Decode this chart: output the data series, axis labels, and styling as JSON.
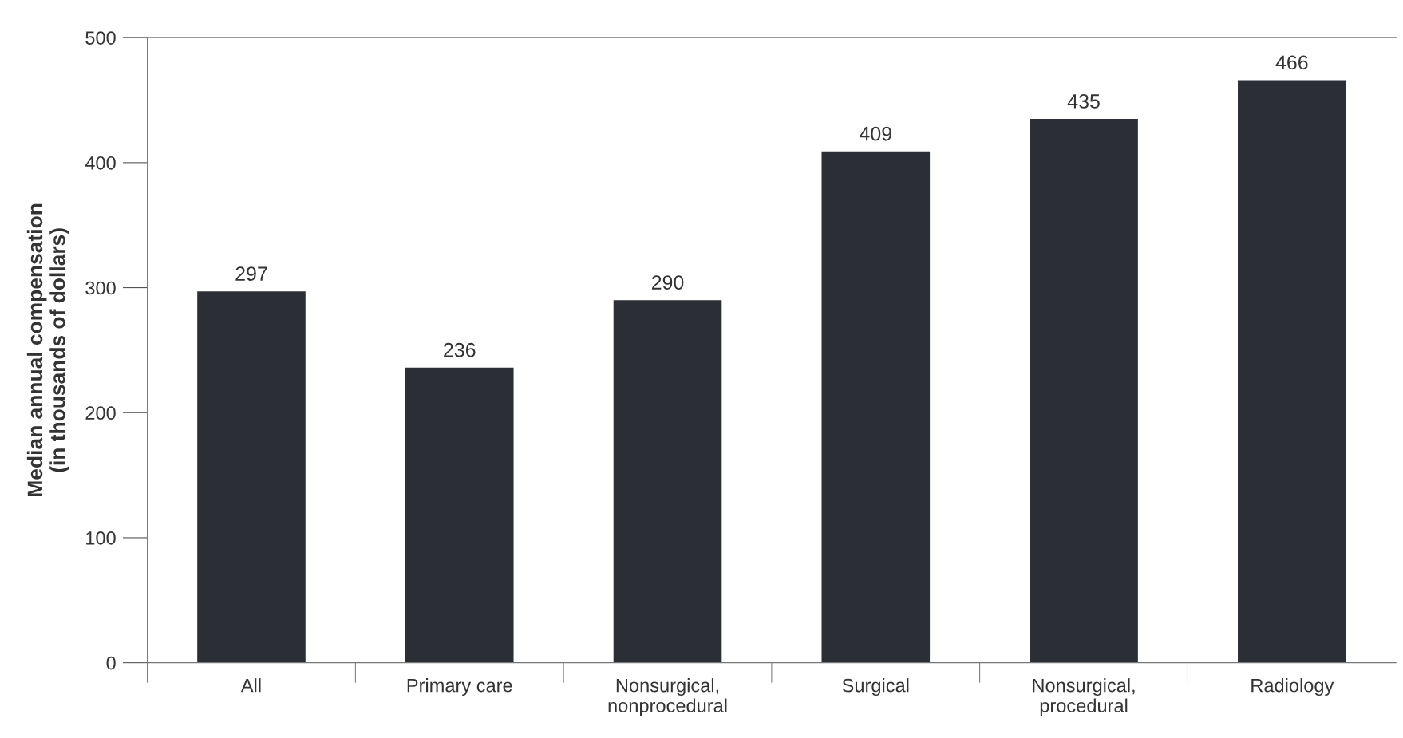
{
  "chart_data": {
    "type": "bar",
    "ylabel": "Median annual compensation\n(in thousands of dollars)",
    "categories": [
      "All",
      "Primary care",
      "Nonsurgical,\nnonprocedural",
      "Surgical",
      "Nonsurgical,\nprocedural",
      "Radiology"
    ],
    "values": [
      297,
      236,
      290,
      409,
      435,
      466
    ],
    "color": "#2b2e35",
    "ylim": [
      0,
      500
    ],
    "yticks": [
      0,
      100,
      200,
      300,
      400,
      500
    ],
    "data_labels": true,
    "grid": false
  }
}
